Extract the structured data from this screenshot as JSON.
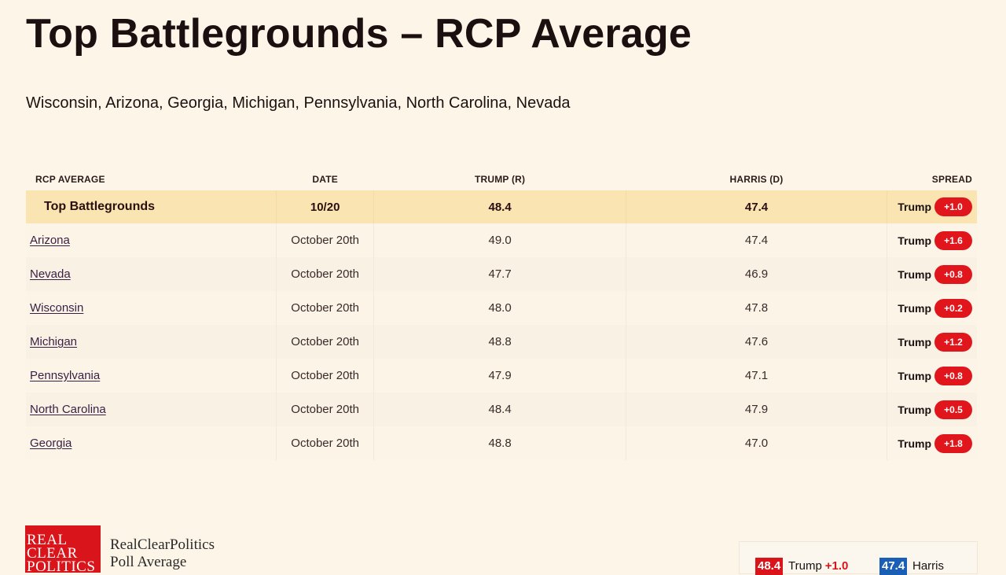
{
  "title": "Top Battlegrounds – RCP Average",
  "subtitle": "Wisconsin, Arizona, Georgia, Michigan, Pennsylvania, North Carolina, Nevada",
  "table": {
    "headers": {
      "name": "RCP AVERAGE",
      "date": "DATE",
      "trump": "TRUMP (R)",
      "harris": "HARRIS (D)",
      "spread": "SPREAD"
    },
    "average": {
      "name": "Top Battlegrounds",
      "date": "10/20",
      "trump": "48.4",
      "harris": "47.4",
      "leader": "Trump",
      "spread": "+1.0"
    },
    "rows": [
      {
        "name": "Arizona",
        "date": "October 20th",
        "trump": "49.0",
        "harris": "47.4",
        "leader": "Trump",
        "spread": "+1.6"
      },
      {
        "name": "Nevada",
        "date": "October 20th",
        "trump": "47.7",
        "harris": "46.9",
        "leader": "Trump",
        "spread": "+0.8"
      },
      {
        "name": "Wisconsin",
        "date": "October 20th",
        "trump": "48.0",
        "harris": "47.8",
        "leader": "Trump",
        "spread": "+0.2"
      },
      {
        "name": "Michigan",
        "date": "October 20th",
        "trump": "48.8",
        "harris": "47.6",
        "leader": "Trump",
        "spread": "+1.2"
      },
      {
        "name": "Pennsylvania",
        "date": "October 20th",
        "trump": "47.9",
        "harris": "47.1",
        "leader": "Trump",
        "spread": "+0.8"
      },
      {
        "name": "North Carolina",
        "date": "October 20th",
        "trump": "48.4",
        "harris": "47.9",
        "leader": "Trump",
        "spread": "+0.5"
      },
      {
        "name": "Georgia",
        "date": "October 20th",
        "trump": "48.8",
        "harris": "47.0",
        "leader": "Trump",
        "spread": "+1.8"
      }
    ]
  },
  "footer": {
    "logo_line1": "REAL",
    "logo_line2": "CLEAR",
    "logo_line3": "POLITICS",
    "brand_line1": "RealClearPolitics",
    "brand_line2": "Poll Average",
    "mini": {
      "trump_value": "48.4",
      "trump_label": "Trump",
      "trump_spread": "+1.0",
      "harris_value": "47.4",
      "harris_label": "Harris"
    }
  },
  "colors": {
    "background": "#fdf6e8",
    "average_row": "#fae4b2",
    "republican": "#e0161c",
    "democrat": "#1a5fb4"
  }
}
